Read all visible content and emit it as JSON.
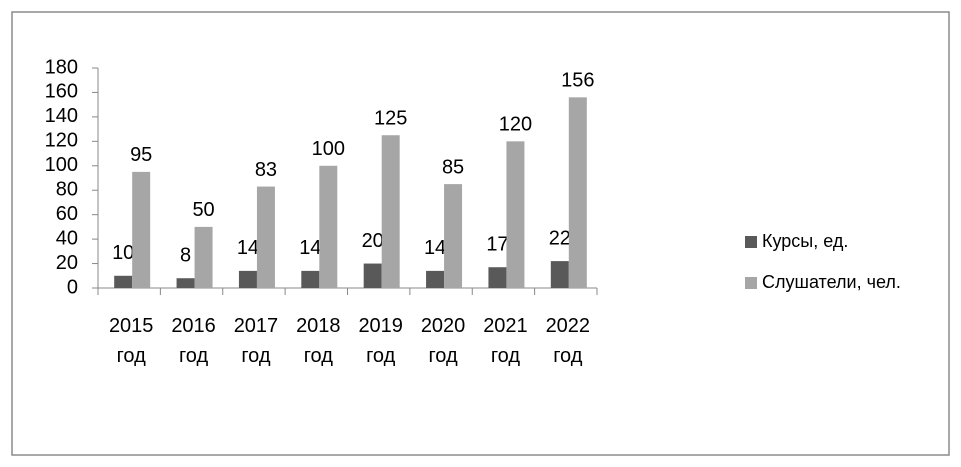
{
  "chart_data": {
    "type": "bar",
    "categories": [
      "2015 год",
      "2016 год",
      "2017 год",
      "2018 год",
      "2019 год",
      "2020 год",
      "2021 год",
      "2022 год"
    ],
    "series": [
      {
        "name": "Курсы, ед.",
        "color": "#595959",
        "values": [
          10,
          8,
          14,
          14,
          20,
          14,
          17,
          22
        ]
      },
      {
        "name": "Слушатели, чел.",
        "color": "#a6a6a6",
        "values": [
          95,
          50,
          83,
          100,
          125,
          85,
          120,
          156
        ]
      }
    ],
    "ylim": [
      0,
      180
    ],
    "yticks": [
      0,
      20,
      40,
      60,
      80,
      100,
      120,
      140,
      160,
      180
    ],
    "legend": "right",
    "grid": false
  }
}
